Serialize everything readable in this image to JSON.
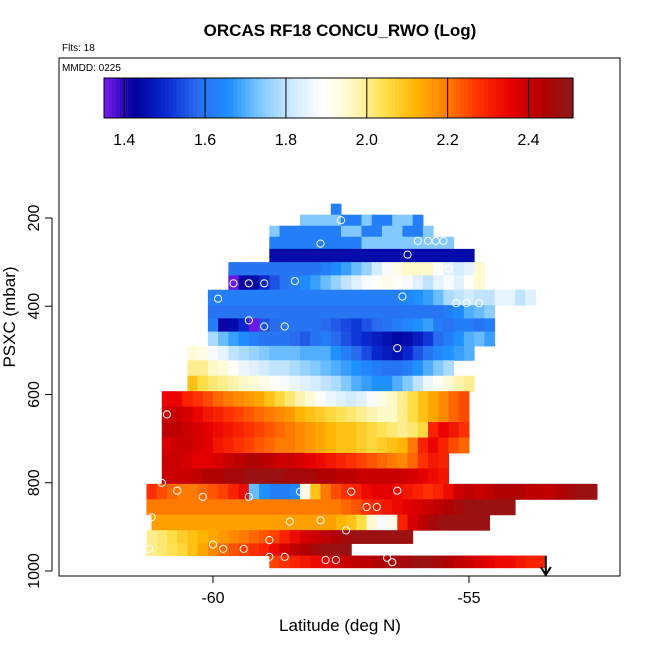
{
  "chart_data": {
    "type": "heatmap",
    "title": "ORCAS RF18 CONCU_RWO (Log)",
    "flights_label": "Flts: 18",
    "date_label": "MMDD: 0225",
    "xlabel": "Latitude (deg N)",
    "ylabel": "PSXC (mbar)",
    "xlim": [
      -61.5,
      -51.5
    ],
    "ylim": [
      1000,
      80
    ],
    "y_inverted": true,
    "xticks": [
      -60,
      -55
    ],
    "xtick_labels": [
      "-60",
      "-55"
    ],
    "yticks": [
      200,
      400,
      600,
      800,
      1000
    ],
    "ytick_labels": [
      "200",
      "400",
      "600",
      "800",
      "1000"
    ],
    "colorbar": {
      "range": [
        1.35,
        2.51
      ],
      "ticks": [
        1.4,
        1.6,
        1.8,
        2.0,
        2.2,
        2.4
      ],
      "tick_labels": [
        "1.4",
        "1.6",
        "1.8",
        "2.0",
        "2.2",
        "2.4"
      ],
      "colors": [
        "#7a1cf0",
        "#00009a",
        "#0a2ad2",
        "#2a6df0",
        "#1e90ff",
        "#7ec8ff",
        "#cfeaff",
        "#ffffff",
        "#fff8c0",
        "#ffe04a",
        "#ffb300",
        "#ff7a00",
        "#ff3000",
        "#e80000",
        "#b40000",
        "#8b1a1a"
      ]
    },
    "arrow_marker_x": -53.5,
    "rows": [
      {
        "p": 180,
        "x0": -57.7,
        "vals": [
          1.62
        ]
      },
      {
        "p": 205,
        "x0": -58.3,
        "vals": [
          1.74,
          1.74,
          1.74,
          1.74,
          1.62,
          1.62,
          1.74,
          1.62,
          1.62,
          1.74,
          1.74,
          1.62
        ]
      },
      {
        "p": 230,
        "x0": -58.9,
        "vals": [
          1.74,
          1.62,
          1.62,
          1.62,
          1.62,
          1.62,
          1.62,
          1.74,
          1.74,
          1.62,
          1.62,
          1.74,
          1.74,
          1.62,
          1.62,
          1.74
        ]
      },
      {
        "p": 255,
        "x0": -58.9,
        "vals": [
          1.62,
          1.62,
          1.62,
          1.62,
          1.62,
          1.62,
          1.62,
          1.62,
          1.62,
          1.74,
          1.74,
          1.74,
          1.74,
          1.74,
          1.74,
          1.74,
          1.74,
          1.74
        ]
      },
      {
        "p": 285,
        "x0": -58.9,
        "vals": [
          1.45,
          1.45,
          1.45,
          1.45,
          1.45,
          1.45,
          1.45,
          1.45,
          1.45,
          1.45,
          1.45,
          1.45,
          1.45,
          1.45,
          1.45,
          1.45,
          1.45,
          1.45,
          1.45,
          1.45
        ]
      },
      {
        "p": 315,
        "x0": -59.7,
        "vals": [
          1.6,
          1.6,
          1.6,
          1.6,
          1.6,
          1.6,
          1.6,
          1.6,
          1.6,
          1.62,
          1.65,
          1.68,
          1.72,
          1.76,
          1.82,
          1.88,
          1.92,
          1.96,
          1.96,
          1.96,
          1.9,
          1.85,
          1.82,
          1.85,
          1.95
        ]
      },
      {
        "p": 345,
        "x0": -59.7,
        "vals": [
          1.36,
          1.42,
          1.45,
          1.5,
          1.55,
          1.6,
          1.62,
          1.65,
          1.68,
          1.72,
          1.76,
          1.8,
          1.84,
          1.88,
          1.9,
          1.92,
          1.9,
          1.88,
          1.84,
          1.8,
          1.85,
          1.88,
          1.84,
          1.9,
          1.95
        ]
      },
      {
        "p": 380,
        "x0": -60.1,
        "vals": [
          1.62,
          1.62,
          1.62,
          1.62,
          1.62,
          1.62,
          1.62,
          1.62,
          1.62,
          1.62,
          1.62,
          1.62,
          1.62,
          1.62,
          1.62,
          1.62,
          1.62,
          1.62,
          1.62,
          1.64,
          1.66,
          1.68,
          1.72,
          1.78,
          1.8,
          1.82,
          1.8,
          1.8,
          1.85,
          1.85,
          1.8,
          1.84
        ]
      },
      {
        "p": 415,
        "x0": -60.1,
        "vals": [
          1.6,
          1.6,
          1.6,
          1.6,
          1.6,
          1.6,
          1.6,
          1.6,
          1.6,
          1.6,
          1.6,
          1.6,
          1.6,
          1.6,
          1.6,
          1.6,
          1.6,
          1.6,
          1.6,
          1.6,
          1.6,
          1.6,
          1.6,
          1.62,
          1.65,
          1.7,
          1.72,
          1.75
        ]
      },
      {
        "p": 440,
        "x0": -60.1,
        "vals": [
          1.62,
          1.42,
          1.45,
          1.5,
          1.36,
          1.55,
          1.58,
          1.6,
          1.6,
          1.6,
          1.6,
          1.58,
          1.56,
          1.54,
          1.52,
          1.55,
          1.58,
          1.6,
          1.62,
          1.64,
          1.66,
          1.68,
          1.62,
          1.6,
          1.62,
          1.62,
          1.6,
          1.62
        ]
      },
      {
        "p": 475,
        "x0": -60.1,
        "vals": [
          1.78,
          1.72,
          1.68,
          1.65,
          1.62,
          1.6,
          1.6,
          1.6,
          1.58,
          1.56,
          1.6,
          1.62,
          1.58,
          1.55,
          1.52,
          1.5,
          1.48,
          1.46,
          1.44,
          1.45,
          1.48,
          1.52,
          1.58,
          1.62,
          1.66,
          1.7,
          1.72,
          1.68
        ]
      },
      {
        "p": 505,
        "x0": -60.5,
        "vals": [
          1.95,
          1.92,
          1.88,
          1.85,
          1.8,
          1.78,
          1.76,
          1.74,
          1.72,
          1.72,
          1.72,
          1.7,
          1.7,
          1.7,
          1.66,
          1.62,
          1.58,
          1.54,
          1.5,
          1.48,
          1.46,
          1.5,
          1.55,
          1.6,
          1.64,
          1.66,
          1.68,
          1.7
        ]
      },
      {
        "p": 540,
        "x0": -60.5,
        "vals": [
          2.0,
          2.0,
          1.96,
          1.94,
          1.9,
          1.86,
          1.84,
          1.82,
          1.8,
          1.8,
          1.78,
          1.76,
          1.74,
          1.72,
          1.7,
          1.68,
          1.66,
          1.64,
          1.62,
          1.6,
          1.6,
          1.62,
          1.66,
          1.7,
          1.74,
          1.78
        ]
      },
      {
        "p": 575,
        "x0": -60.5,
        "vals": [
          2.1,
          2.05,
          2.02,
          2.0,
          1.98,
          1.96,
          1.94,
          1.92,
          1.9,
          1.88,
          1.86,
          1.84,
          1.82,
          1.8,
          1.78,
          1.74,
          1.7,
          1.68,
          1.66,
          1.66,
          1.7,
          1.74,
          1.8,
          1.86,
          1.9,
          1.94,
          1.98,
          2.0
        ]
      },
      {
        "p": 610,
        "x0": -61.0,
        "vals": [
          2.35,
          2.35,
          2.3,
          2.28,
          2.25,
          2.22,
          2.2,
          2.18,
          2.16,
          2.14,
          2.1,
          2.06,
          2.02,
          1.98,
          1.94,
          1.9,
          1.86,
          1.84,
          1.82,
          1.84,
          1.88,
          1.92,
          1.96,
          2.0,
          2.05,
          2.1,
          2.14,
          2.18,
          2.22,
          2.25
        ]
      },
      {
        "p": 645,
        "x0": -61.0,
        "vals": [
          2.4,
          2.4,
          2.38,
          2.35,
          2.32,
          2.3,
          2.28,
          2.26,
          2.24,
          2.22,
          2.2,
          2.18,
          2.16,
          2.12,
          2.1,
          2.08,
          2.06,
          2.04,
          2.02,
          2.0,
          1.98,
          1.96,
          1.96,
          2.0,
          2.05,
          2.1,
          2.14,
          2.18,
          2.22,
          2.25
        ]
      },
      {
        "p": 680,
        "x0": -61.0,
        "vals": [
          2.42,
          2.42,
          2.4,
          2.38,
          2.36,
          2.34,
          2.32,
          2.3,
          2.28,
          2.26,
          2.24,
          2.22,
          2.2,
          2.18,
          2.16,
          2.14,
          2.12,
          2.1,
          2.1,
          2.08,
          2.06,
          2.04,
          2.02,
          2.0,
          2.02,
          2.06,
          2.3,
          2.35,
          2.32,
          2.28
        ]
      },
      {
        "p": 715,
        "x0": -61.0,
        "vals": [
          2.38,
          2.4,
          2.4,
          2.38,
          2.36,
          2.32,
          2.3,
          2.28,
          2.26,
          2.24,
          2.22,
          2.2,
          2.2,
          2.18,
          2.16,
          2.14,
          2.12,
          2.1,
          2.1,
          2.08,
          2.06,
          2.08,
          2.1,
          2.12,
          2.2,
          2.3,
          2.35,
          2.3,
          2.25,
          2.22
        ]
      },
      {
        "p": 750,
        "x0": -61.0,
        "vals": [
          2.4,
          2.4,
          2.38,
          2.36,
          2.36,
          2.38,
          2.4,
          2.42,
          2.44,
          2.44,
          2.42,
          2.4,
          2.4,
          2.38,
          2.36,
          2.34,
          2.32,
          2.3,
          2.28,
          2.26,
          2.24,
          2.22,
          2.2,
          2.18,
          2.22,
          2.28,
          2.32,
          2.3
        ]
      },
      {
        "p": 785,
        "x0": -61.0,
        "vals": [
          2.4,
          2.4,
          2.4,
          2.42,
          2.44,
          2.44,
          2.46,
          2.46,
          2.48,
          2.48,
          2.48,
          2.48,
          2.46,
          2.46,
          2.46,
          2.44,
          2.44,
          2.42,
          2.42,
          2.4,
          2.4,
          2.4,
          2.4,
          2.4,
          2.38,
          2.36,
          2.34,
          2.32
        ]
      },
      {
        "p": 820,
        "x0": -61.3,
        "vals": [
          2.28,
          2.25,
          2.22,
          2.2,
          2.2,
          2.22,
          2.24,
          2.26,
          2.3,
          2.34,
          1.72,
          1.66,
          1.62,
          1.62,
          1.64,
          1.92,
          2.1,
          2.2,
          2.25,
          2.28,
          2.3,
          2.34,
          2.36,
          2.36,
          2.34,
          2.32,
          2.3,
          2.28,
          2.3,
          2.34,
          2.4,
          2.42,
          2.4,
          2.42,
          2.44,
          2.44,
          2.44,
          2.42,
          2.42,
          2.42,
          2.44,
          2.46,
          2.48,
          2.48
        ]
      },
      {
        "p": 855,
        "x0": -61.3,
        "vals": [
          2.2,
          2.2,
          2.2,
          2.2,
          2.2,
          2.2,
          2.2,
          2.2,
          2.2,
          2.2,
          2.2,
          2.2,
          2.2,
          2.2,
          2.2,
          2.2,
          2.2,
          2.2,
          2.2,
          2.22,
          2.24,
          2.28,
          2.3,
          2.32,
          2.34,
          2.36,
          2.38,
          2.4,
          2.42,
          2.44,
          2.46,
          2.48,
          2.48,
          2.48,
          2.48,
          2.48
        ]
      },
      {
        "p": 890,
        "x0": -61.2,
        "vals": [
          2.15,
          2.15,
          2.15,
          2.15,
          2.15,
          2.15,
          2.15,
          2.15,
          2.15,
          2.15,
          2.15,
          2.15,
          2.15,
          2.15,
          2.15,
          2.15,
          2.15,
          2.15,
          2.12,
          2.1,
          2.05,
          1.95,
          1.88,
          1.92,
          2.3,
          2.38,
          2.42,
          2.46,
          2.48,
          2.48,
          2.48,
          2.48,
          2.48
        ]
      },
      {
        "p": 925,
        "x0": -61.3,
        "vals": [
          2.0,
          2.02,
          2.05,
          2.08,
          2.1,
          2.12,
          2.14,
          2.16,
          2.18,
          2.2,
          2.22,
          2.24,
          2.26,
          2.3,
          2.34,
          2.38,
          2.4,
          2.42,
          2.44,
          2.46,
          2.48,
          2.48,
          2.48,
          2.48,
          2.48,
          2.48
        ]
      },
      {
        "p": 950,
        "x0": -61.3,
        "vals": [
          2.0,
          2.02,
          2.04,
          2.06,
          2.1,
          2.14,
          2.18,
          2.22,
          2.24,
          2.26,
          2.28,
          2.3,
          2.34,
          2.38,
          2.42,
          2.44,
          2.46,
          2.48,
          2.48,
          2.48
        ]
      },
      {
        "p": 980,
        "x0": -58.9,
        "vals": [
          2.26,
          2.28,
          2.3,
          2.32,
          2.34,
          2.36,
          2.38,
          2.4,
          2.42,
          2.42,
          2.44,
          2.44,
          2.46,
          2.46,
          2.48,
          2.48,
          2.46,
          2.44,
          2.42,
          2.4,
          2.38,
          2.36,
          2.34,
          2.34,
          2.32,
          2.3,
          2.3
        ]
      }
    ],
    "points": [
      {
        "x": -57.5,
        "y": 205
      },
      {
        "x": -57.9,
        "y": 258
      },
      {
        "x": -56.0,
        "y": 252
      },
      {
        "x": -55.8,
        "y": 252
      },
      {
        "x": -55.65,
        "y": 252
      },
      {
        "x": -55.5,
        "y": 252
      },
      {
        "x": -56.2,
        "y": 283
      },
      {
        "x": -55.4,
        "y": 315
      },
      {
        "x": -59.6,
        "y": 348
      },
      {
        "x": -59.3,
        "y": 348
      },
      {
        "x": -59.0,
        "y": 348
      },
      {
        "x": -58.4,
        "y": 343
      },
      {
        "x": -56.3,
        "y": 378
      },
      {
        "x": -59.9,
        "y": 383
      },
      {
        "x": -55.25,
        "y": 393
      },
      {
        "x": -55.05,
        "y": 393
      },
      {
        "x": -54.8,
        "y": 393
      },
      {
        "x": -60.2,
        "y": 446
      },
      {
        "x": -59.3,
        "y": 432
      },
      {
        "x": -59.0,
        "y": 446
      },
      {
        "x": -58.6,
        "y": 446
      },
      {
        "x": -56.4,
        "y": 495
      },
      {
        "x": -60.4,
        "y": 508
      },
      {
        "x": -60.7,
        "y": 578
      },
      {
        "x": -60.9,
        "y": 645
      },
      {
        "x": -61.1,
        "y": 723
      },
      {
        "x": -61.0,
        "y": 800
      },
      {
        "x": -60.7,
        "y": 818
      },
      {
        "x": -60.2,
        "y": 832
      },
      {
        "x": -59.3,
        "y": 832
      },
      {
        "x": -58.3,
        "y": 820
      },
      {
        "x": -57.3,
        "y": 820
      },
      {
        "x": -56.4,
        "y": 818
      },
      {
        "x": -57.0,
        "y": 855
      },
      {
        "x": -56.8,
        "y": 855
      },
      {
        "x": -58.5,
        "y": 888
      },
      {
        "x": -57.9,
        "y": 885
      },
      {
        "x": -57.4,
        "y": 908
      },
      {
        "x": -61.2,
        "y": 878
      },
      {
        "x": -58.9,
        "y": 930
      },
      {
        "x": -61.4,
        "y": 950
      },
      {
        "x": -61.25,
        "y": 950
      },
      {
        "x": -60.0,
        "y": 940
      },
      {
        "x": -59.8,
        "y": 950
      },
      {
        "x": -59.4,
        "y": 950
      },
      {
        "x": -58.9,
        "y": 968
      },
      {
        "x": -58.6,
        "y": 968
      },
      {
        "x": -57.8,
        "y": 975
      },
      {
        "x": -57.6,
        "y": 975
      },
      {
        "x": -56.8,
        "y": 950
      },
      {
        "x": -56.6,
        "y": 970
      },
      {
        "x": -56.5,
        "y": 980
      }
    ]
  }
}
